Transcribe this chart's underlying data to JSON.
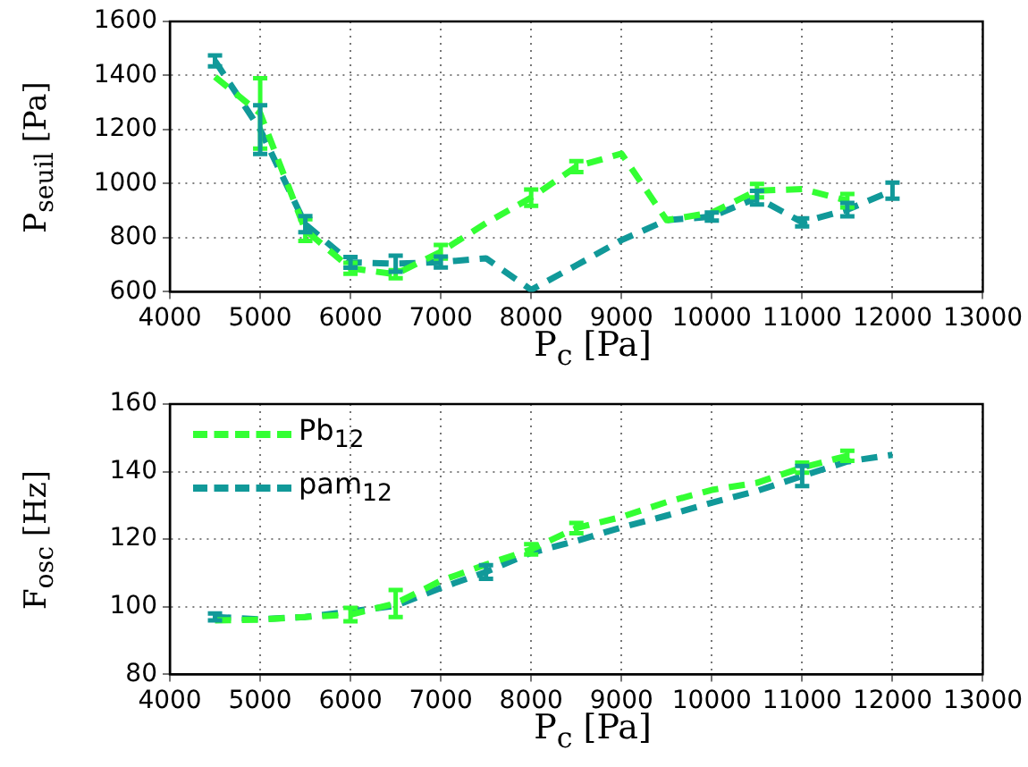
{
  "chart_data": [
    {
      "type": "line",
      "xlabel": "P$_{c}$ [Pa]",
      "ylabel": "P$_{seuil}$ [Pa]",
      "xlim": [
        4000,
        13000
      ],
      "xticks": [
        4000,
        5000,
        6000,
        7000,
        8000,
        9000,
        10000,
        11000,
        12000,
        13000
      ],
      "ylim": [
        600,
        1600
      ],
      "yticks": [
        600,
        800,
        1000,
        1200,
        1400,
        1600
      ],
      "grid": true,
      "legend": false,
      "line_style": "dashed",
      "series": [
        {
          "color": "#33ff33",
          "x": [
            4500,
            5000,
            5500,
            6000,
            6500,
            7000,
            7500,
            8000,
            8500,
            9000,
            9500,
            10000,
            10500,
            11000,
            11500
          ],
          "values": [
            1395,
            1260,
            828,
            687,
            665,
            748,
            854,
            948,
            1063,
            1111,
            865,
            893,
            974,
            980,
            937
          ],
          "errors": [
            null,
            130,
            40,
            20,
            15,
            25,
            null,
            30,
            20,
            null,
            null,
            null,
            25,
            null,
            25
          ]
        },
        {
          "color": "#119999",
          "x": [
            4500,
            5000,
            5500,
            6000,
            6500,
            7000,
            7500,
            8000,
            8500,
            9000,
            9500,
            10000,
            10500,
            11000,
            11500,
            12000
          ],
          "values": [
            1454,
            1200,
            850,
            709,
            704,
            710,
            724,
            607,
            698,
            791,
            865,
            878,
            948,
            857,
            904,
            974
          ],
          "errors": [
            20,
            90,
            30,
            20,
            30,
            20,
            null,
            null,
            null,
            null,
            null,
            15,
            25,
            15,
            25,
            30
          ]
        }
      ]
    },
    {
      "type": "line",
      "xlabel": "P$_{c}$ [Pa]",
      "ylabel": "F$_{osc}$ [Hz]",
      "xlim": [
        4000,
        13000
      ],
      "xticks": [
        4000,
        5000,
        6000,
        7000,
        8000,
        9000,
        10000,
        11000,
        12000,
        13000
      ],
      "ylim": [
        80,
        160
      ],
      "yticks": [
        80,
        100,
        120,
        140,
        160
      ],
      "grid": true,
      "legend": "top left",
      "line_style": "dashed",
      "series": [
        {
          "name": "Pb$_{12}$",
          "color": "#33ff33",
          "x": [
            4500,
            5000,
            5500,
            6000,
            6500,
            7000,
            7500,
            8000,
            8500,
            9000,
            9500,
            10000,
            10500,
            11000,
            11500
          ],
          "values": [
            96,
            96.2,
            97,
            97.7,
            101,
            107.7,
            112.5,
            117,
            123.3,
            126.6,
            131,
            134.6,
            136.7,
            141.2,
            144.7
          ],
          "errors": [
            null,
            null,
            null,
            2,
            4,
            null,
            null,
            1.5,
            1.5,
            null,
            null,
            null,
            null,
            1.5,
            1.5
          ]
        },
        {
          "name": "pam$_{12}$",
          "color": "#119999",
          "x": [
            4500,
            5000,
            5500,
            6000,
            6500,
            7000,
            7500,
            8000,
            8500,
            9000,
            9500,
            10000,
            10500,
            11000,
            11500,
            12000
          ],
          "values": [
            97,
            96.3,
            97,
            98.6,
            100.3,
            105.6,
            110.3,
            116,
            119.5,
            123.5,
            127,
            130.8,
            134.3,
            138.7,
            143,
            145
          ],
          "errors": [
            1,
            null,
            null,
            null,
            null,
            null,
            2,
            null,
            null,
            null,
            null,
            null,
            null,
            3,
            null,
            null
          ]
        }
      ]
    }
  ]
}
